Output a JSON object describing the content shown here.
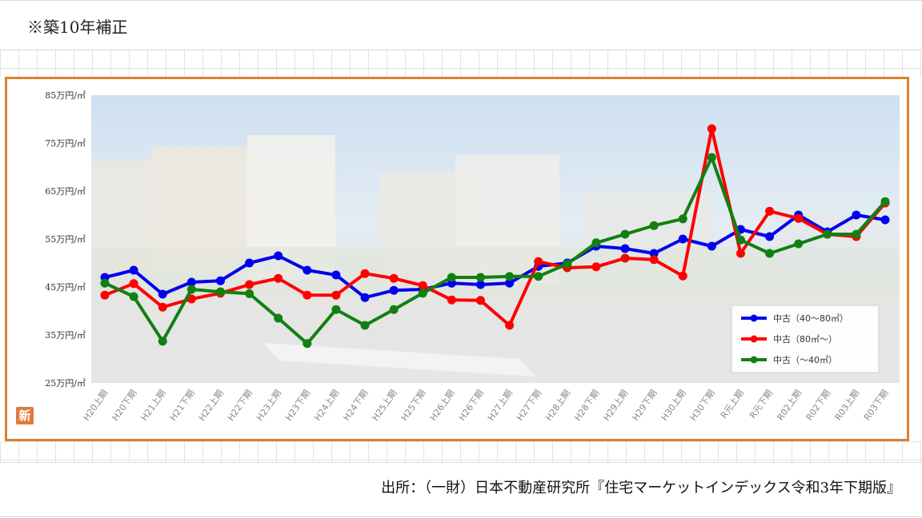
{
  "note": "※築10年補正",
  "badge": "新",
  "source": "出所：（一財）日本不動産研究所『住宅マーケットインデックス令和3年下期版』",
  "chart_data": {
    "type": "line",
    "y_tick_labels": [
      "25万円/㎡",
      "35万円/㎡",
      "45万円/㎡",
      "55万円/㎡",
      "65万円/㎡",
      "75万円/㎡",
      "85万円/㎡"
    ],
    "y_tick_values": [
      25,
      35,
      45,
      55,
      65,
      75,
      85
    ],
    "ylim": [
      25,
      85
    ],
    "categories": [
      "H20上期",
      "H20下期",
      "H21上期",
      "H21下期",
      "H22上期",
      "H22下期",
      "H23上期",
      "H23下期",
      "H24上期",
      "H24下期",
      "H25上期",
      "H25下期",
      "H26上期",
      "H26下期",
      "H27上期",
      "H27下期",
      "H28上期",
      "H28下期",
      "H29上期",
      "H29下期",
      "H30上期",
      "H30下期",
      "R元上期",
      "R元下期",
      "R02上期",
      "R02下期",
      "R03上期",
      "R03下期"
    ],
    "series": [
      {
        "name": "中古（40～80㎡）",
        "color": "#0000ee",
        "values": [
          47.0,
          48.5,
          43.5,
          46.0,
          46.3,
          50.0,
          51.5,
          48.5,
          47.5,
          42.8,
          44.3,
          44.5,
          45.8,
          45.5,
          45.8,
          49.3,
          50.0,
          53.5,
          53.0,
          52.0,
          55.0,
          53.5,
          57.0,
          55.5,
          60.0,
          56.5,
          60.0,
          59.0
        ]
      },
      {
        "name": "中古（80㎡～）",
        "color": "#ff0000",
        "values": [
          43.3,
          45.7,
          40.8,
          42.5,
          43.7,
          45.5,
          46.8,
          43.3,
          43.3,
          47.8,
          46.8,
          45.3,
          42.3,
          42.2,
          37.0,
          50.3,
          49.0,
          49.2,
          51.0,
          50.7,
          47.3,
          78.0,
          52.0,
          60.8,
          59.3,
          56.0,
          55.5,
          62.5
        ]
      },
      {
        "name": "中古（～40㎡）",
        "color": "#118011",
        "values": [
          45.8,
          43.0,
          33.7,
          44.5,
          44.0,
          43.6,
          38.5,
          33.2,
          40.3,
          37.0,
          40.3,
          43.7,
          47.0,
          47.0,
          47.2,
          47.2,
          49.8,
          54.2,
          56.0,
          57.8,
          59.2,
          72.0,
          54.8,
          52.0,
          54.0,
          56.0,
          56.0,
          62.8
        ]
      }
    ],
    "grid": false,
    "legend_position": "lower-right"
  }
}
